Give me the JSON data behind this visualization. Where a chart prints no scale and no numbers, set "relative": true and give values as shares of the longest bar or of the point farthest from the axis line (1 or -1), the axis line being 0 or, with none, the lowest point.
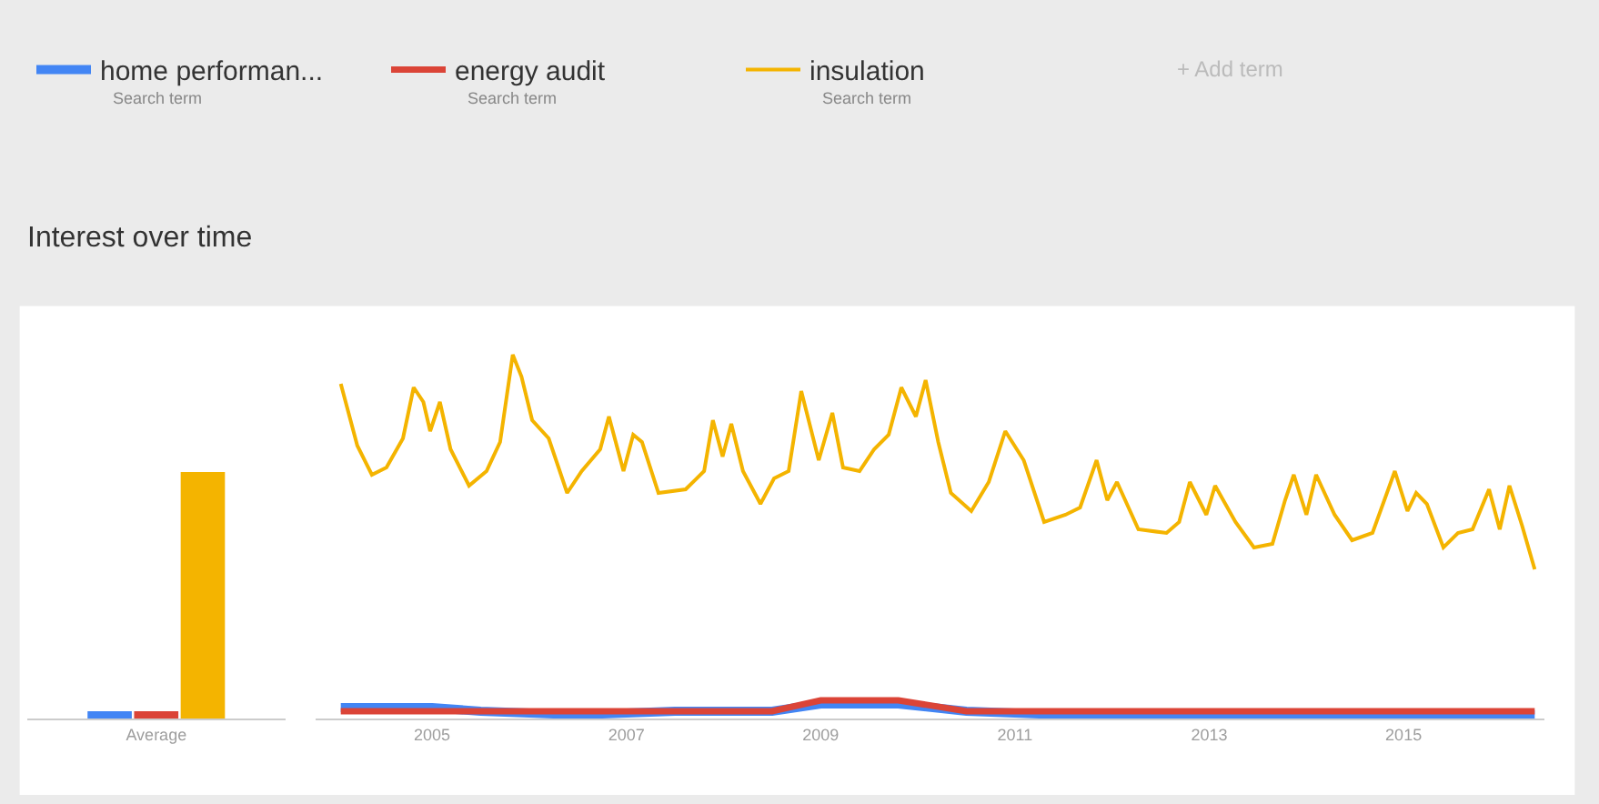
{
  "chart_data": [
    {
      "type": "bar",
      "title": "Interest over time",
      "relative": true,
      "categories": [
        "Average"
      ],
      "series": [
        {
          "color": "#4285f4",
          "values": [
            0.03
          ]
        },
        {
          "color": "#db4437",
          "values": [
            0.03
          ]
        },
        {
          "color": "#f4b400",
          "values": [
            1
          ]
        }
      ]
    },
    {
      "type": "line",
      "relative": true,
      "legend": "top left",
      "xlim": [
        2003.8,
        2016.45
      ],
      "xticks": [
        2005,
        2007,
        2009,
        2011,
        2013,
        2015
      ],
      "annotations": [
        "Search term",
        "Search term",
        "Search term",
        "+ Add term"
      ],
      "series": [
        {
          "name": "home performan...",
          "color": "#4285f4",
          "x": [
            2004.06,
            2005.0,
            2005.5,
            2006.5,
            2007.5,
            2008.5,
            2009.0,
            2009.8,
            2010.5,
            2011.5,
            2012.5,
            2013.5,
            2014.5,
            2016.35
          ],
          "values": [
            0.03,
            0.03,
            0.02,
            0.01,
            0.02,
            0.02,
            0.04,
            0.04,
            0.02,
            0.01,
            0.01,
            0.01,
            0.01,
            0.01
          ]
        },
        {
          "name": "energy audit",
          "color": "#db4437",
          "x": [
            2004.06,
            2005.0,
            2005.5,
            2006.5,
            2007.5,
            2008.5,
            2009.0,
            2009.8,
            2010.5,
            2011.5,
            2012.5,
            2013.5,
            2014.5,
            2016.35
          ],
          "values": [
            0.02,
            0.02,
            0.02,
            0.02,
            0.02,
            0.02,
            0.05,
            0.05,
            0.02,
            0.02,
            0.02,
            0.02,
            0.02,
            0.02
          ]
        },
        {
          "name": "insulation",
          "color": "#f4b400",
          "x": [
            2004.06,
            2004.23,
            2004.38,
            2004.53,
            2004.7,
            2004.81,
            2004.91,
            2004.98,
            2005.08,
            2005.19,
            2005.38,
            2005.56,
            2005.7,
            2005.83,
            2005.92,
            2006.03,
            2006.2,
            2006.39,
            2006.54,
            2006.73,
            2006.82,
            2006.97,
            2007.07,
            2007.16,
            2007.33,
            2007.61,
            2007.8,
            2007.89,
            2007.99,
            2008.08,
            2008.2,
            2008.38,
            2008.52,
            2008.67,
            2008.8,
            2008.98,
            2009.12,
            2009.23,
            2009.4,
            2009.55,
            2009.7,
            2009.83,
            2009.98,
            2010.08,
            2010.21,
            2010.34,
            2010.55,
            2010.73,
            2010.9,
            2011.09,
            2011.3,
            2011.52,
            2011.67,
            2011.84,
            2011.95,
            2012.05,
            2012.27,
            2012.56,
            2012.69,
            2012.8,
            2012.97,
            2013.06,
            2013.27,
            2013.46,
            2013.65,
            2013.78,
            2013.87,
            2014.0,
            2014.1,
            2014.29,
            2014.47,
            2014.68,
            2014.91,
            2015.04,
            2015.13,
            2015.24,
            2015.41,
            2015.56,
            2015.71,
            2015.88,
            2015.99,
            2016.09,
            2016.22,
            2016.35
          ],
          "values": [
            0.92,
            0.75,
            0.67,
            0.69,
            0.77,
            0.91,
            0.87,
            0.79,
            0.87,
            0.74,
            0.64,
            0.68,
            0.76,
            1.0,
            0.94,
            0.82,
            0.77,
            0.62,
            0.68,
            0.74,
            0.83,
            0.68,
            0.78,
            0.76,
            0.62,
            0.63,
            0.68,
            0.82,
            0.72,
            0.81,
            0.68,
            0.59,
            0.66,
            0.68,
            0.9,
            0.71,
            0.84,
            0.69,
            0.68,
            0.74,
            0.78,
            0.91,
            0.83,
            0.93,
            0.76,
            0.62,
            0.57,
            0.65,
            0.79,
            0.71,
            0.54,
            0.56,
            0.58,
            0.71,
            0.6,
            0.65,
            0.52,
            0.51,
            0.54,
            0.65,
            0.56,
            0.64,
            0.54,
            0.47,
            0.48,
            0.6,
            0.67,
            0.56,
            0.67,
            0.56,
            0.49,
            0.51,
            0.68,
            0.57,
            0.62,
            0.59,
            0.47,
            0.51,
            0.52,
            0.63,
            0.52,
            0.64,
            0.53,
            0.41
          ]
        }
      ]
    }
  ]
}
